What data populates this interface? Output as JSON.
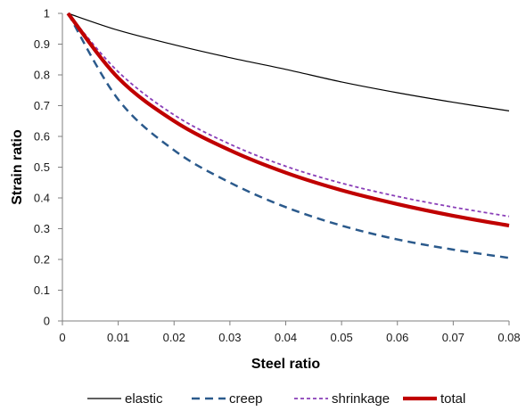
{
  "chart_data": {
    "type": "line",
    "xlabel": "Steel ratio",
    "ylabel": "Strain ratio",
    "xlim": [
      0,
      0.08
    ],
    "ylim": [
      0,
      1
    ],
    "x_ticks": [
      "0",
      "0.01",
      "0.02",
      "0.03",
      "0.04",
      "0.05",
      "0.06",
      "0.07",
      "0.08"
    ],
    "y_ticks": [
      "0",
      "0.1",
      "0.2",
      "0.3",
      "0.4",
      "0.5",
      "0.6",
      "0.7",
      "0.8",
      "0.9",
      "1"
    ],
    "grid": false,
    "legend_position": "bottom",
    "x": [
      0.001,
      0.01,
      0.02,
      0.03,
      0.04,
      0.05,
      0.06,
      0.07,
      0.08
    ],
    "series": [
      {
        "name": "elastic",
        "color": "#000000",
        "style": "solid-thin",
        "values": [
          1.0,
          0.945,
          0.898,
          0.856,
          0.818,
          0.777,
          0.742,
          0.711,
          0.683
        ]
      },
      {
        "name": "creep",
        "color": "#2b5a8c",
        "style": "dashed",
        "values": [
          1.0,
          0.72,
          0.555,
          0.45,
          0.37,
          0.31,
          0.265,
          0.232,
          0.205
        ]
      },
      {
        "name": "shrinkage",
        "color": "#8a3fb8",
        "style": "dotted",
        "values": [
          1.0,
          0.81,
          0.67,
          0.575,
          0.503,
          0.448,
          0.405,
          0.37,
          0.34
        ]
      },
      {
        "name": "total",
        "color": "#c00000",
        "style": "solid-thick",
        "values": [
          1.0,
          0.79,
          0.65,
          0.555,
          0.482,
          0.425,
          0.38,
          0.342,
          0.31
        ]
      }
    ]
  }
}
